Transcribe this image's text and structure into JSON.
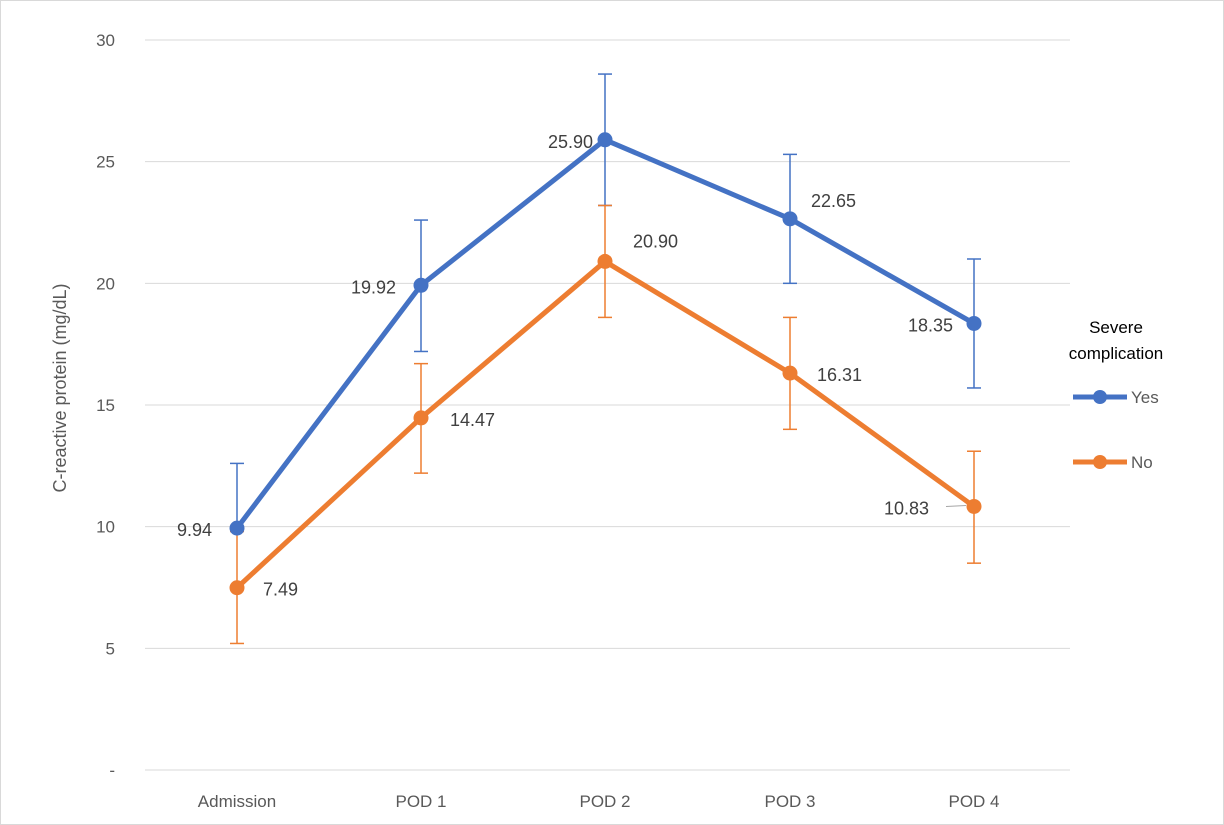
{
  "chart_data": {
    "type": "line",
    "ylabel": "C-reactive protein  (mg/dL)",
    "xlabel": "",
    "categories": [
      "Admission",
      "POD 1",
      "POD 2",
      "POD 3",
      "POD 4"
    ],
    "ylim": [
      0,
      30
    ],
    "yticks": [
      0,
      5,
      10,
      15,
      20,
      25,
      30
    ],
    "ytick_labels": [
      "-",
      "5",
      "10",
      "15",
      "20",
      "25",
      "30"
    ],
    "grid": true,
    "legend": {
      "title_lines": [
        "Severe",
        "complication"
      ],
      "placement": "right"
    },
    "series": [
      {
        "name": "Yes",
        "color": "#4472c4",
        "values": [
          9.94,
          19.92,
          25.9,
          22.65,
          18.35
        ],
        "labels": [
          "9.94",
          "19.92",
          "25.90",
          "22.65",
          "18.35"
        ],
        "error_upper": [
          12.6,
          22.6,
          28.6,
          25.3,
          21.0
        ],
        "error_lower": [
          9.94,
          17.2,
          23.2,
          20.0,
          15.7
        ]
      },
      {
        "name": "No",
        "color": "#ed7d31",
        "values": [
          7.49,
          14.47,
          20.9,
          16.31,
          10.83
        ],
        "labels": [
          "7.49",
          "14.47",
          "20.90",
          "16.31",
          "10.83"
        ],
        "error_upper": [
          9.8,
          16.7,
          23.2,
          18.6,
          13.1
        ],
        "error_lower": [
          5.2,
          12.2,
          18.6,
          14.0,
          8.5
        ]
      }
    ]
  }
}
